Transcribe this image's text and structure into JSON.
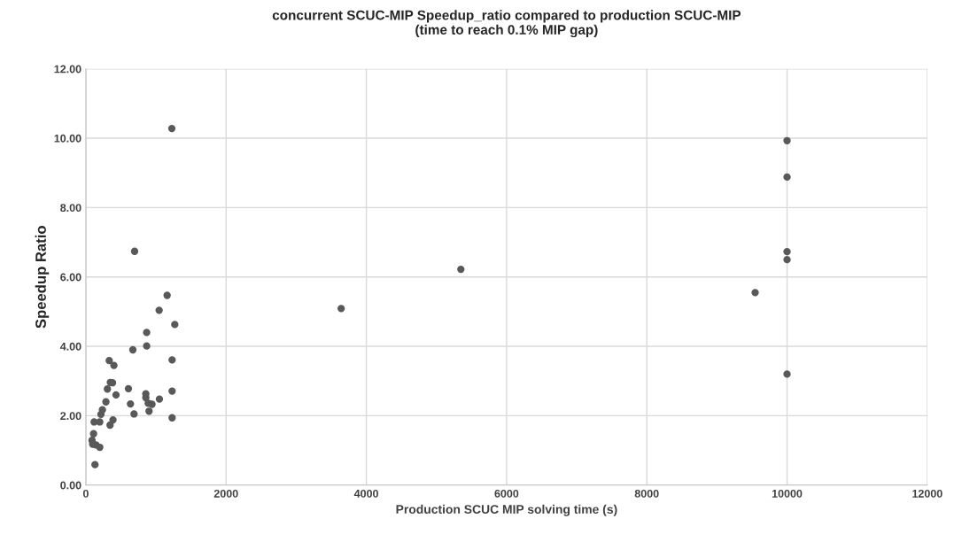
{
  "chart_data": {
    "type": "scatter",
    "title": "concurrent SCUC-MIP Speedup_ratio compared to production SCUC-MIP\n(time to reach 0.1% MIP gap)",
    "xlabel": "Production SCUC MIP solving time (s)",
    "ylabel": "Speedup Ratio",
    "x": [
      1226,
      695,
      1159,
      1045,
      1268,
      867,
      867,
      670,
      1230,
      333,
      400,
      349,
      380,
      307,
      430,
      607,
      1230,
      855,
      855,
      1049,
      636,
      889,
      943,
      286,
      236,
      215,
      687,
      901,
      1230,
      198,
      118,
      387,
      345,
      110,
      88,
      97,
      198,
      143,
      130,
      3641,
      5348,
      9545,
      10000,
      10000,
      10000,
      10000,
      10000
    ],
    "series": [
      {
        "color": "#595959",
        "values": [
          10.28,
          6.74,
          5.47,
          5.04,
          4.63,
          4.4,
          4.01,
          3.9,
          3.61,
          3.59,
          3.45,
          2.96,
          2.95,
          2.77,
          2.6,
          2.78,
          2.71,
          2.63,
          2.52,
          2.48,
          2.34,
          2.36,
          2.33,
          2.4,
          2.17,
          2.04,
          2.05,
          2.13,
          1.94,
          1.82,
          1.82,
          1.88,
          1.73,
          1.48,
          1.29,
          1.18,
          1.09,
          1.16,
          0.59,
          5.09,
          6.22,
          5.55,
          9.93,
          8.88,
          6.73,
          6.5,
          3.2
        ]
      }
    ],
    "xlim": [
      0,
      12000
    ],
    "ylim": [
      0,
      12
    ],
    "xticks": [
      0,
      2000,
      4000,
      6000,
      8000,
      10000,
      12000
    ],
    "yticks": [
      {
        "value": 0,
        "label": "0.00"
      },
      {
        "value": 2,
        "label": "2.00"
      },
      {
        "value": 4,
        "label": "4.00"
      },
      {
        "value": 6,
        "label": "6.00"
      },
      {
        "value": 8,
        "label": "8.00"
      },
      {
        "value": 10,
        "label": "10.00"
      },
      {
        "value": 12,
        "label": "12.00"
      }
    ],
    "grid": true,
    "marker": "circle",
    "legend": false
  }
}
